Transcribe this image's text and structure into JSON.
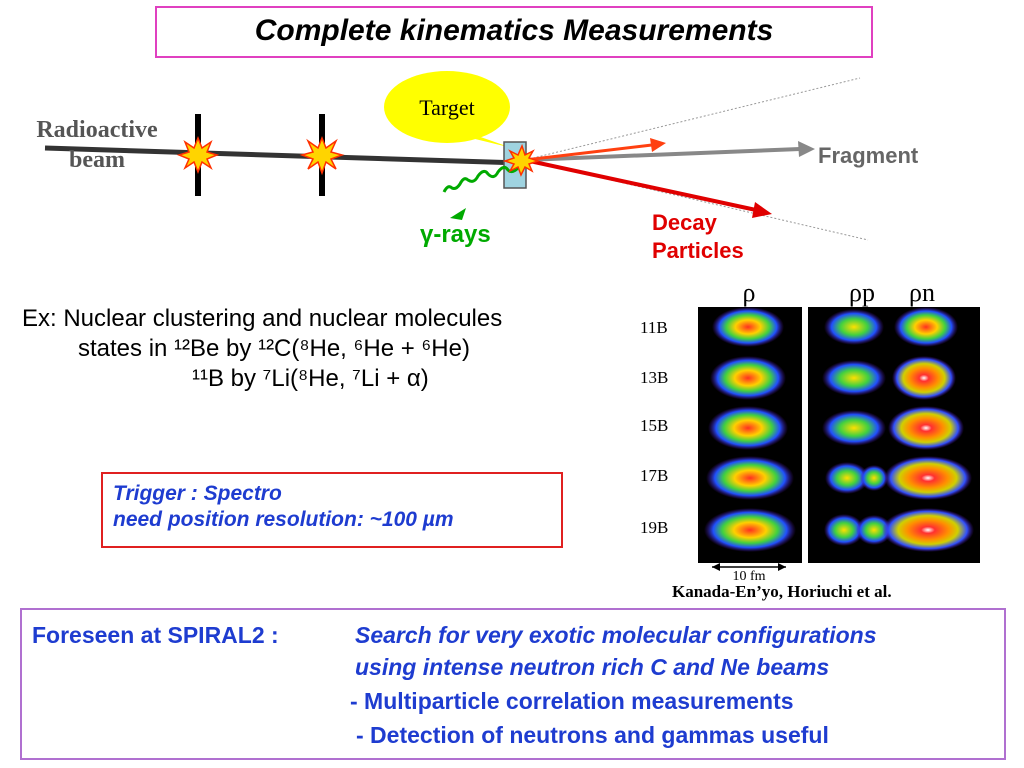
{
  "title": "Complete kinematics Measurements",
  "diagram": {
    "radioactive_beam": "Radioactive\nbeam",
    "target": "Target",
    "fragment": "Fragment",
    "decay_particles": "Decay\nParticles",
    "gamma_rays": "γ-rays"
  },
  "example": {
    "line1": "Ex: Nuclear clustering and nuclear molecules",
    "line2": "states in ¹²Be by  ¹²C(⁸He, ⁶He + ⁶He)",
    "line3": "¹¹B   by   ⁷Li(⁸He, ⁷Li + α)"
  },
  "trigger": {
    "line1": "Trigger :  Spectro",
    "line2": "need position resolution: ~100 µm"
  },
  "density_figure": {
    "col_labels": [
      "ρ",
      "ρp",
      "ρn"
    ],
    "row_labels": [
      "11B",
      "13B",
      "15B",
      "17B",
      "19B"
    ],
    "scale_label": "10 fm",
    "citation": "Kanada-En’yo, Horiuchi et al."
  },
  "foreseen": {
    "label": "Foreseen at SPIRAL2 :",
    "line1": "Search for very exotic molecular configurations",
    "line2": "using intense neutron rich C and Ne beams",
    "line3": "- Multiparticle correlation measurements",
    "line4": "- Detection of neutrons and gammas useful"
  },
  "colors": {
    "title_border": "#e040c0",
    "trigger_border": "#e02020",
    "foreseen_border": "#b070d0",
    "blue_text": "#1e3cd0",
    "decay_red": "#e00000",
    "gamma_green": "#00aa00",
    "target_yellow": "#ffff00"
  }
}
